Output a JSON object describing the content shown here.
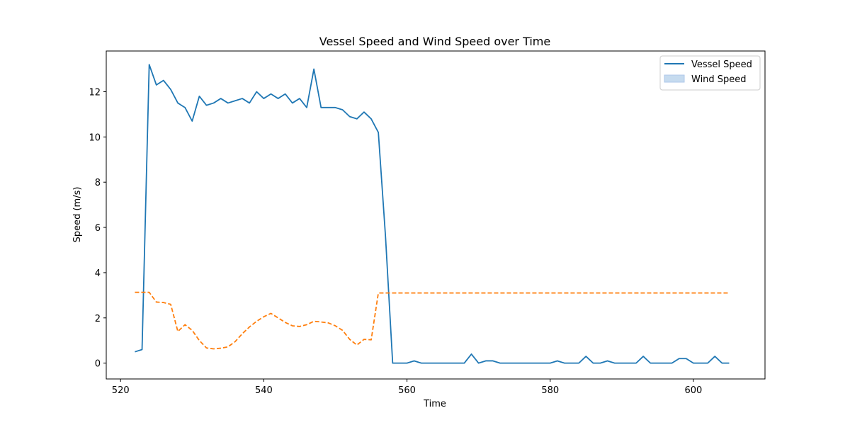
{
  "chart_data": {
    "type": "line",
    "title": "Vessel Speed and Wind Speed over Time",
    "xlabel": "Time",
    "ylabel": "Speed (m/s)",
    "xlim": [
      518,
      610
    ],
    "ylim": [
      -0.7,
      13.8
    ],
    "xticks": [
      520,
      540,
      560,
      580,
      600
    ],
    "yticks": [
      0,
      2,
      4,
      6,
      8,
      10,
      12
    ],
    "grid": false,
    "legend_position": "top-right",
    "x": [
      522,
      523,
      524,
      525,
      526,
      527,
      528,
      529,
      530,
      531,
      532,
      533,
      534,
      535,
      536,
      537,
      538,
      539,
      540,
      541,
      542,
      543,
      544,
      545,
      546,
      547,
      548,
      549,
      550,
      551,
      552,
      553,
      554,
      555,
      556,
      557,
      558,
      559,
      560,
      561,
      562,
      563,
      564,
      565,
      566,
      567,
      568,
      569,
      570,
      571,
      572,
      573,
      574,
      575,
      576,
      577,
      578,
      579,
      580,
      581,
      582,
      583,
      584,
      585,
      586,
      587,
      588,
      589,
      590,
      591,
      592,
      593,
      594,
      595,
      596,
      597,
      598,
      599,
      600,
      601,
      602,
      603,
      604,
      605
    ],
    "series": [
      {
        "name": "Vessel Speed",
        "color": "#1f77b4",
        "style": "solid",
        "legend_marker": "line",
        "values": [
          0.5,
          0.6,
          13.2,
          12.3,
          12.5,
          12.1,
          11.5,
          11.3,
          10.7,
          11.8,
          11.4,
          11.5,
          11.7,
          11.5,
          11.6,
          11.7,
          11.5,
          12.0,
          11.7,
          11.9,
          11.7,
          11.9,
          11.5,
          11.7,
          11.3,
          13.0,
          11.3,
          11.3,
          11.3,
          11.2,
          10.9,
          10.8,
          11.1,
          10.8,
          10.2,
          5.6,
          0.0,
          0.0,
          0.0,
          0.1,
          0.0,
          0.0,
          0.0,
          0.0,
          0.0,
          0.0,
          0.0,
          0.4,
          0.0,
          0.1,
          0.1,
          0.0,
          0.0,
          0.0,
          0.0,
          0.0,
          0.0,
          0.0,
          0.0,
          0.1,
          0.0,
          0.0,
          0.0,
          0.3,
          0.0,
          0.0,
          0.1,
          0.0,
          0.0,
          0.0,
          0.0,
          0.3,
          0.0,
          0.0,
          0.0,
          0.0,
          0.2,
          0.2,
          0.0,
          0.0,
          0.0,
          0.3,
          0.0,
          0.0
        ]
      },
      {
        "name": "Wind Speed",
        "color": "#ff7f0e",
        "style": "dashed",
        "legend_marker": "patch",
        "legend_color": "#c6dbef",
        "values": [
          3.13,
          3.13,
          3.13,
          2.7,
          2.68,
          2.6,
          1.4,
          1.7,
          1.45,
          1.0,
          0.67,
          0.63,
          0.66,
          0.72,
          0.95,
          1.3,
          1.6,
          1.85,
          2.05,
          2.2,
          2.0,
          1.8,
          1.65,
          1.62,
          1.7,
          1.85,
          1.82,
          1.78,
          1.65,
          1.45,
          1.05,
          0.8,
          1.05,
          1.03,
          3.1,
          3.1,
          3.1,
          3.1,
          3.1,
          3.1,
          3.1,
          3.1,
          3.1,
          3.1,
          3.1,
          3.1,
          3.1,
          3.1,
          3.1,
          3.1,
          3.1,
          3.1,
          3.1,
          3.1,
          3.1,
          3.1,
          3.1,
          3.1,
          3.1,
          3.1,
          3.1,
          3.1,
          3.1,
          3.1,
          3.1,
          3.1,
          3.1,
          3.1,
          3.1,
          3.1,
          3.1,
          3.1,
          3.1,
          3.1,
          3.1,
          3.1,
          3.1,
          3.1,
          3.1,
          3.1,
          3.1,
          3.1,
          3.1,
          3.1
        ]
      }
    ]
  }
}
